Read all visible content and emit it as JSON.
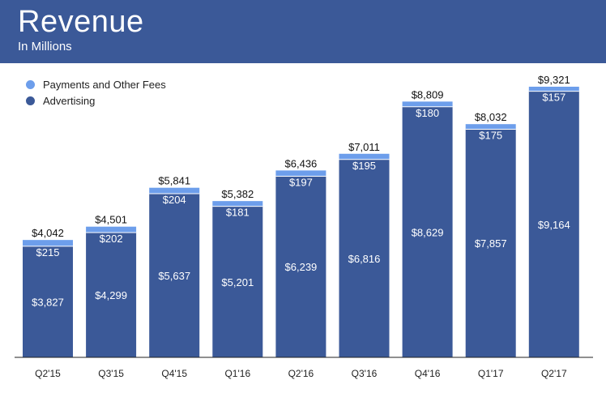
{
  "header": {
    "title": "Revenue",
    "subtitle": "In Millions"
  },
  "colors": {
    "header_bg": "#3b5998",
    "advertising": "#3b5998",
    "payments": "#6d9eeb",
    "baseline": "#222222"
  },
  "chart_data": {
    "type": "bar",
    "stacked": true,
    "title": "Revenue",
    "subtitle": "In Millions",
    "categories": [
      "Q2'15",
      "Q3'15",
      "Q4'15",
      "Q1'16",
      "Q2'16",
      "Q3'16",
      "Q4'16",
      "Q1'17",
      "Q2'17"
    ],
    "series": [
      {
        "name": "Advertising",
        "values": [
          3827,
          4299,
          5637,
          5201,
          6239,
          6816,
          8629,
          7857,
          9164
        ],
        "labels": [
          "$3,827",
          "$4,299",
          "$5,637",
          "$5,201",
          "$6,239",
          "$6,816",
          "$8,629",
          "$7,857",
          "$9,164"
        ]
      },
      {
        "name": "Payments and Other Fees",
        "values": [
          215,
          202,
          204,
          181,
          197,
          195,
          180,
          175,
          157
        ],
        "labels": [
          "$215",
          "$202",
          "$204",
          "$181",
          "$197",
          "$195",
          "$180",
          "$175",
          "$157"
        ]
      }
    ],
    "totals": [
      4042,
      4501,
      5841,
      5382,
      6436,
      7011,
      8809,
      8032,
      9321
    ],
    "total_labels": [
      "$4,042",
      "$4,501",
      "$5,841",
      "$5,382",
      "$6,436",
      "$7,011",
      "$8,809",
      "$8,032",
      "$9,321"
    ],
    "legend": {
      "position": "top-left",
      "entries": [
        "Payments and Other Fees",
        "Advertising"
      ]
    },
    "ylim": [
      0,
      9321
    ],
    "grid": false
  }
}
